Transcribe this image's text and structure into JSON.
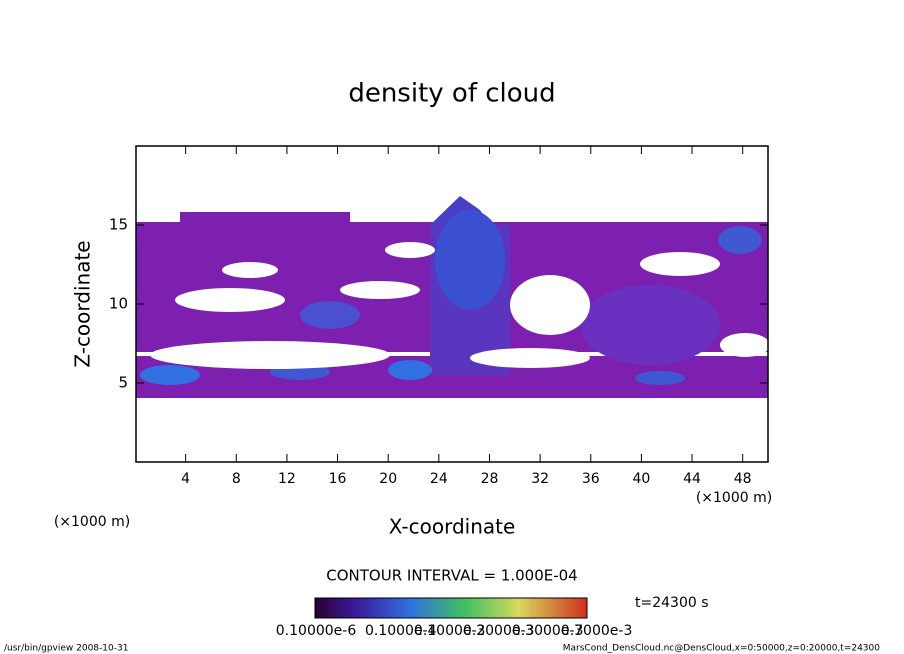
{
  "chart_data": {
    "type": "contour",
    "title": "density of cloud",
    "xlabel": "X-coordinate",
    "ylabel": "Z-coordinate",
    "x_unit": "(×1000 m)",
    "xlim": [
      0,
      50
    ],
    "ylim": [
      0,
      20
    ],
    "xticks": [
      4,
      8,
      12,
      16,
      20,
      24,
      28,
      32,
      36,
      40,
      44,
      48
    ],
    "yticks": [
      5,
      10,
      15
    ],
    "contour_interval": "CONTOUR INTERVAL = 1.000E-04",
    "time_label": "t=24300 s",
    "colorbar_labels": [
      "0.10000e-6",
      "0.1000e-4",
      "0.1000e-3",
      "0.2000e-3",
      "0.3000e-3",
      "0.7000e-3"
    ],
    "footer_left": "/usr/bin/gpview   2008-10-31",
    "footer_right": "MarsCond_DensCloud.nc@DensCloud,x=0:50000,z=0:20000,t=24300"
  }
}
